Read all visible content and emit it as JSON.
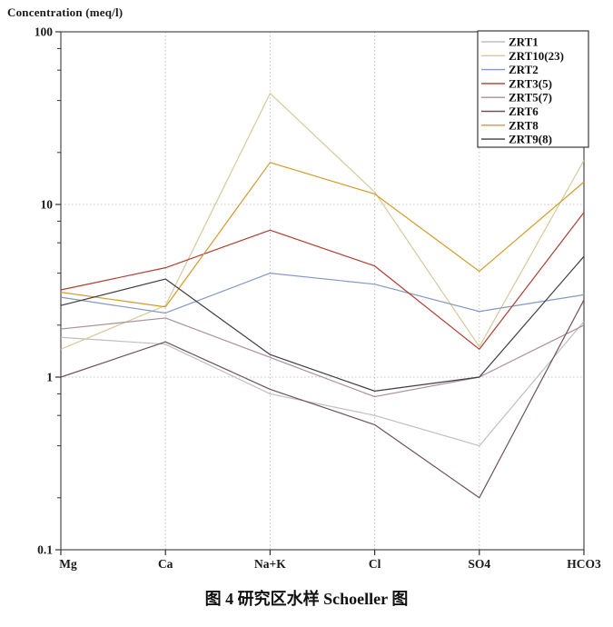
{
  "chart_data": {
    "type": "line",
    "subtype": "schoeller-semilog",
    "title": "Concentration (meq/l)",
    "caption": "图 4  研究区水样 Schoeller 图",
    "x_categories": [
      "Mg",
      "Ca",
      "Na+K",
      "Cl",
      "SO4",
      "HCO3"
    ],
    "y_scale": "log",
    "ylim": [
      0.1,
      100
    ],
    "yticks": [
      100,
      10,
      1,
      0.1
    ],
    "ytick_labels": [
      "100",
      "10",
      "1",
      "0.1"
    ],
    "grid": "dotted gridlines: vertical at each ion, horizontal at log decades",
    "legend_position": "top-right-inside",
    "frame_color": "#4a4a4a",
    "grid_color": "#c4c4c4",
    "series": [
      {
        "name": "ZRT1",
        "color": "#bfbfbf",
        "values": [
          1.7,
          1.55,
          0.8,
          0.6,
          0.4,
          2.1
        ]
      },
      {
        "name": "ZRT10(23)",
        "color": "#d5ca9c",
        "values": [
          1.45,
          2.6,
          44,
          11.8,
          1.5,
          18
        ]
      },
      {
        "name": "ZRT2",
        "color": "#8398c6",
        "values": [
          2.9,
          2.35,
          4.0,
          3.45,
          2.4,
          3.0
        ]
      },
      {
        "name": "ZRT3(5)",
        "color": "#b33b31",
        "values": [
          3.2,
          4.3,
          7.1,
          4.4,
          1.45,
          9.0
        ]
      },
      {
        "name": "ZRT5(7)",
        "color": "#ab8f99",
        "values": [
          1.9,
          2.2,
          1.3,
          0.77,
          1.0,
          2.0
        ]
      },
      {
        "name": "ZRT6",
        "color": "#6d5358",
        "values": [
          1.0,
          1.6,
          0.85,
          0.53,
          0.2,
          2.8
        ]
      },
      {
        "name": "ZRT8",
        "color": "#d69a2b",
        "values": [
          3.1,
          2.55,
          17.5,
          11.5,
          4.1,
          13.5
        ]
      },
      {
        "name": "ZRT9(8)",
        "color": "#3d3d45",
        "values": [
          2.6,
          3.7,
          1.35,
          0.83,
          1.0,
          5.0
        ]
      }
    ]
  }
}
